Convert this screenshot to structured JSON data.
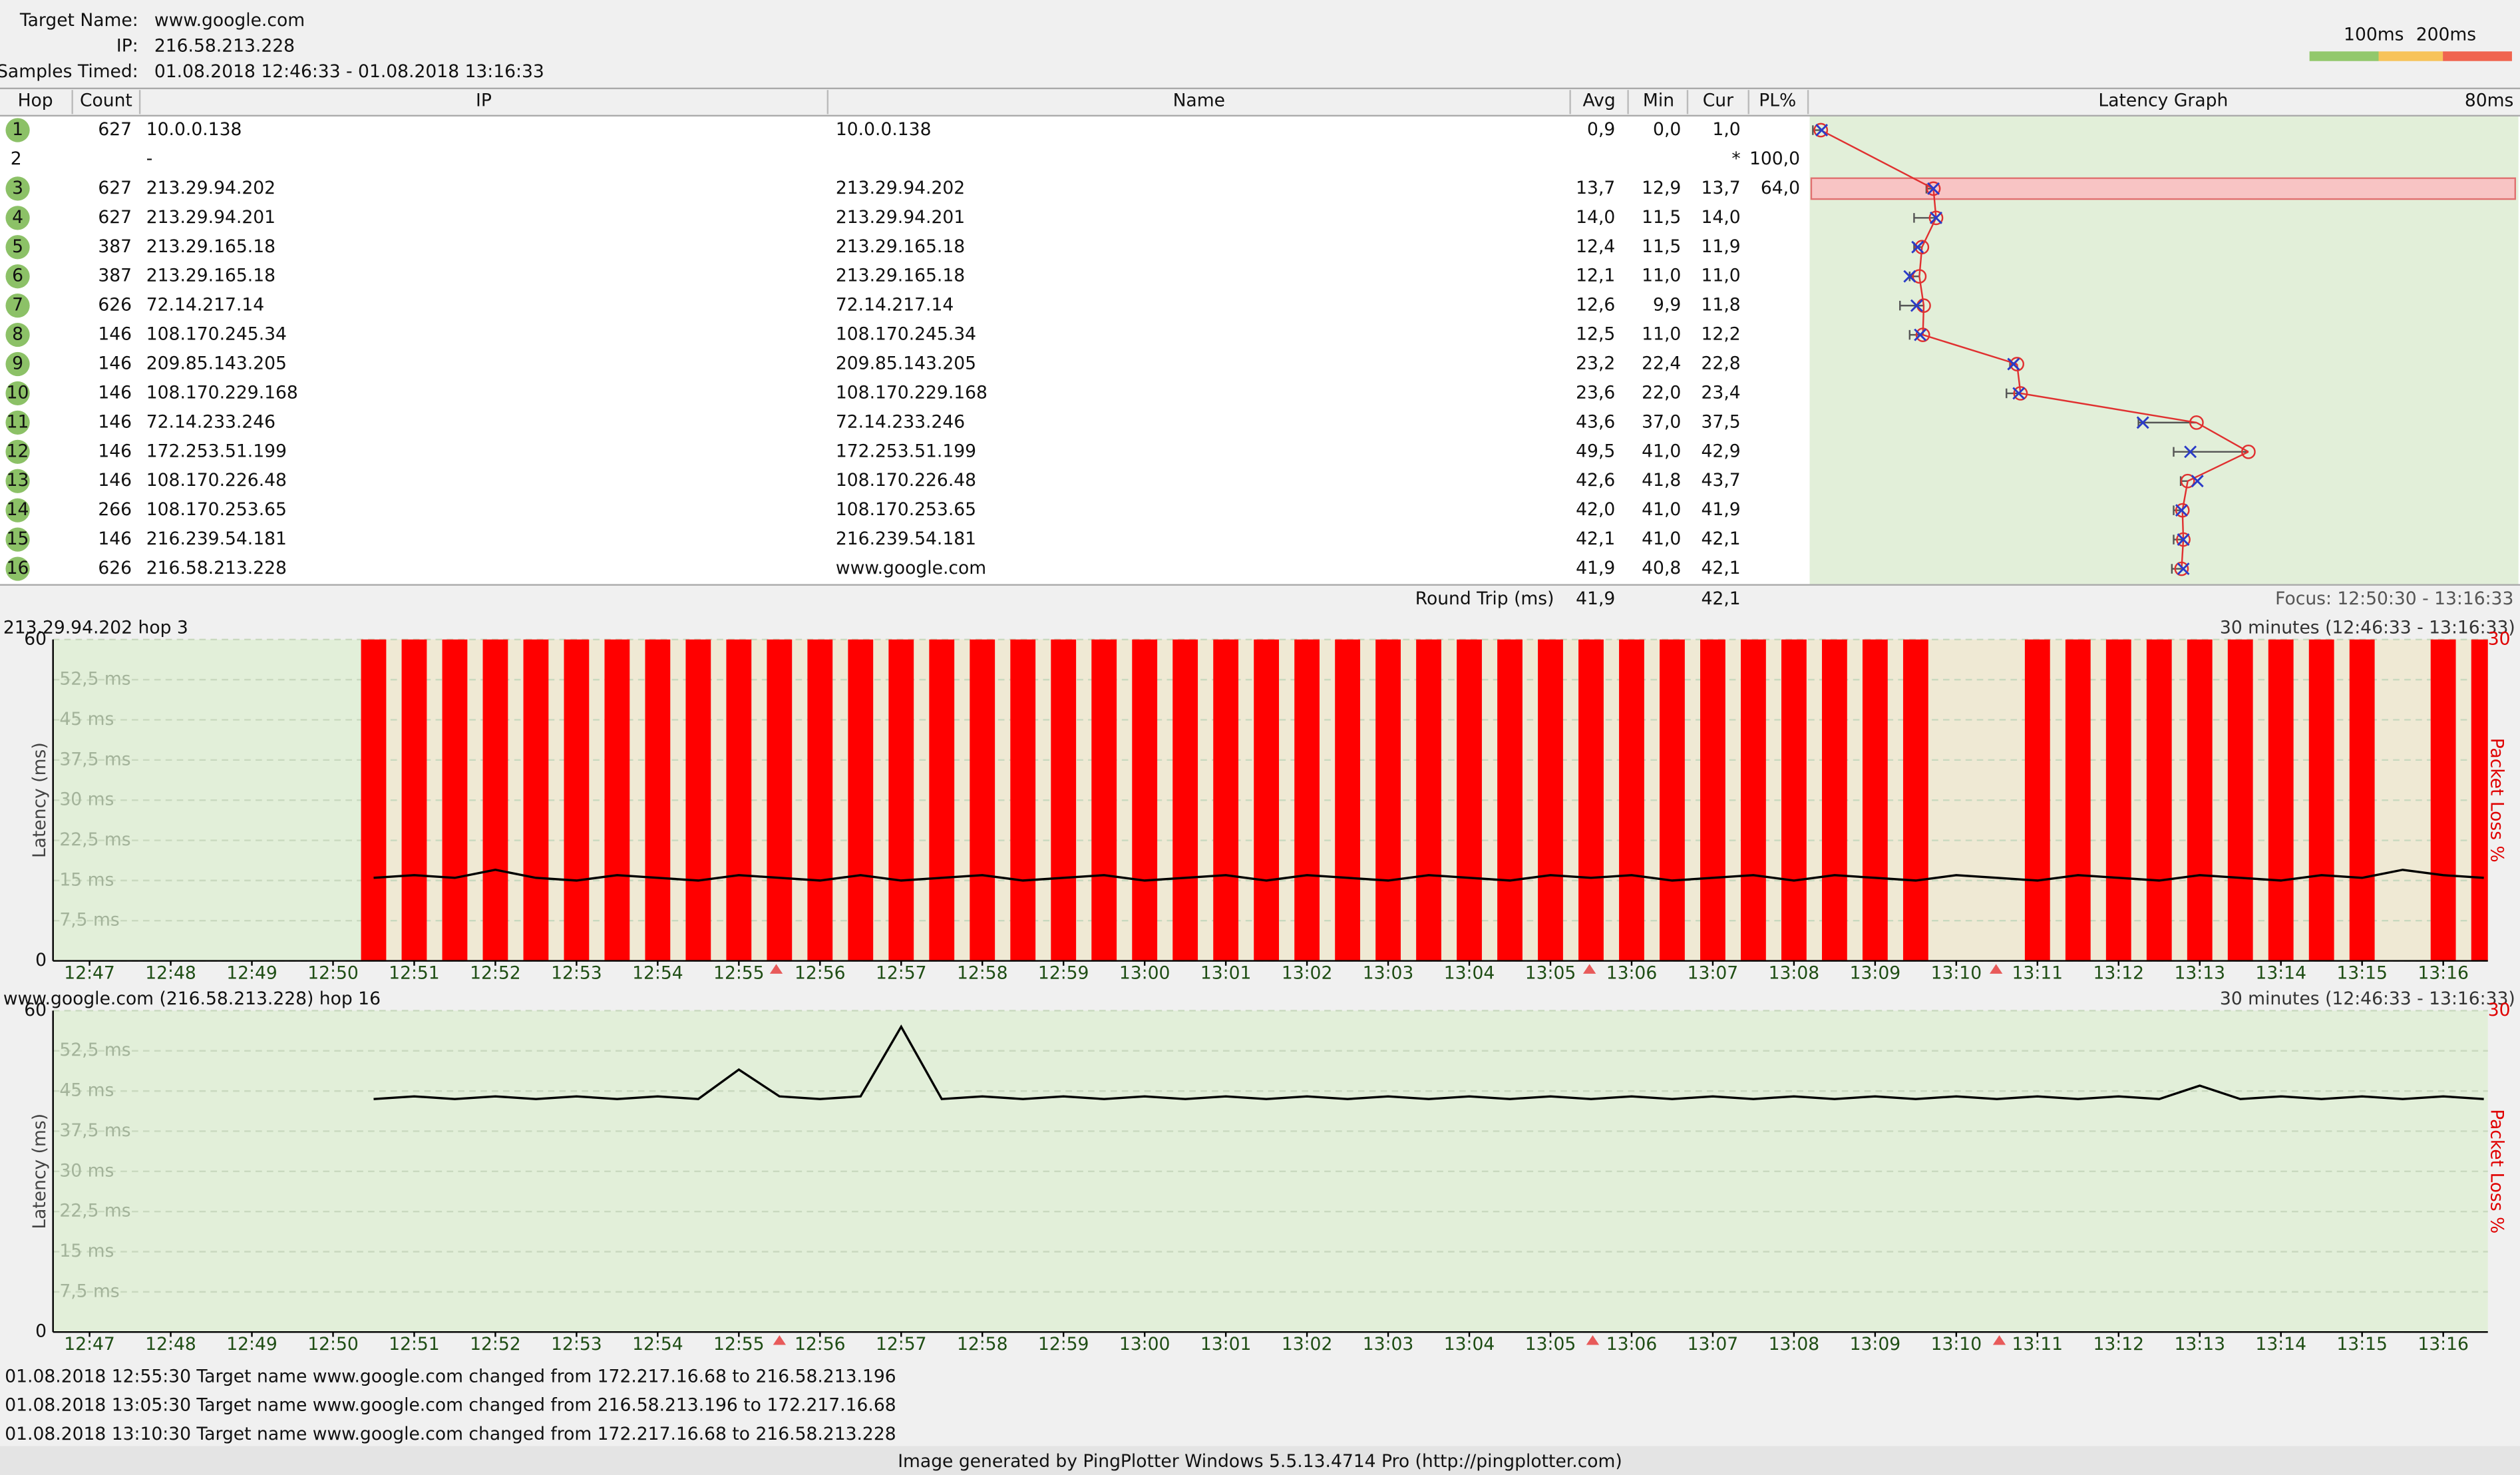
{
  "header": {
    "target_name_label": "Target Name:",
    "target_name": "www.google.com",
    "ip_label": "IP:",
    "ip": "216.58.213.228",
    "samples_label": "Samples Timed:",
    "samples": "01.08.2018 12:46:33 - 01.08.2018 13:16:33",
    "scale_labels": [
      "100ms",
      "200ms"
    ]
  },
  "table": {
    "columns": [
      "Hop",
      "Count",
      "IP",
      "Name",
      "Avg",
      "Min",
      "Cur",
      "PL%",
      "Latency Graph"
    ],
    "graph_max": "80ms",
    "rows": [
      {
        "hop": "1",
        "count": "627",
        "ip": "10.0.0.138",
        "name": "10.0.0.138",
        "avg": "0,9",
        "min": "0,0",
        "cur": "1,0"
      },
      {
        "hop": "2",
        "ip": "-",
        "cur": "*",
        "pl": "100,0"
      },
      {
        "hop": "3",
        "count": "627",
        "ip": "213.29.94.202",
        "name": "213.29.94.202",
        "avg": "13,7",
        "min": "12,9",
        "cur": "13,7",
        "pl": "64,0"
      },
      {
        "hop": "4",
        "count": "627",
        "ip": "213.29.94.201",
        "name": "213.29.94.201",
        "avg": "14,0",
        "min": "11,5",
        "cur": "14,0"
      },
      {
        "hop": "5",
        "count": "387",
        "ip": "213.29.165.18",
        "name": "213.29.165.18",
        "avg": "12,4",
        "min": "11,5",
        "cur": "11,9"
      },
      {
        "hop": "6",
        "count": "387",
        "ip": "213.29.165.18",
        "name": "213.29.165.18",
        "avg": "12,1",
        "min": "11,0",
        "cur": "11,0"
      },
      {
        "hop": "7",
        "count": "626",
        "ip": "72.14.217.14",
        "name": "72.14.217.14",
        "avg": "12,6",
        "min": "9,9",
        "cur": "11,8"
      },
      {
        "hop": "8",
        "count": "146",
        "ip": "108.170.245.34",
        "name": "108.170.245.34",
        "avg": "12,5",
        "min": "11,0",
        "cur": "12,2"
      },
      {
        "hop": "9",
        "count": "146",
        "ip": "209.85.143.205",
        "name": "209.85.143.205",
        "avg": "23,2",
        "min": "22,4",
        "cur": "22,8"
      },
      {
        "hop": "10",
        "count": "146",
        "ip": "108.170.229.168",
        "name": "108.170.229.168",
        "avg": "23,6",
        "min": "22,0",
        "cur": "23,4"
      },
      {
        "hop": "11",
        "count": "146",
        "ip": "72.14.233.246",
        "name": "72.14.233.246",
        "avg": "43,6",
        "min": "37,0",
        "cur": "37,5"
      },
      {
        "hop": "12",
        "count": "146",
        "ip": "172.253.51.199",
        "name": "172.253.51.199",
        "avg": "49,5",
        "min": "41,0",
        "cur": "42,9"
      },
      {
        "hop": "13",
        "count": "146",
        "ip": "108.170.226.48",
        "name": "108.170.226.48",
        "avg": "42,6",
        "min": "41,8",
        "cur": "43,7"
      },
      {
        "hop": "14",
        "count": "266",
        "ip": "108.170.253.65",
        "name": "108.170.253.65",
        "avg": "42,0",
        "min": "41,0",
        "cur": "41,9"
      },
      {
        "hop": "15",
        "count": "146",
        "ip": "216.239.54.181",
        "name": "216.239.54.181",
        "avg": "42,1",
        "min": "41,0",
        "cur": "42,1"
      },
      {
        "hop": "16",
        "count": "626",
        "ip": "216.58.213.228",
        "name": "www.google.com",
        "avg": "41,9",
        "min": "40,8",
        "cur": "42,1"
      }
    ],
    "summary": {
      "label": "Round Trip (ms)",
      "avg": "41,9",
      "cur": "42,1",
      "focus": "Focus: 12:50:30 - 13:16:33"
    }
  },
  "chart_data": [
    {
      "type": "line",
      "title": "213.29.94.202 hop 3",
      "subtitle": "30 minutes (12:46:33 - 13:16:33)",
      "y_label": "Latency (ms)",
      "y2_label": "Packet Loss %",
      "xlim": [
        "12:46:33",
        "13:16:33"
      ],
      "xticks": [
        "12:47",
        "12:48",
        "12:49",
        "12:50",
        "12:51",
        "12:52",
        "12:53",
        "12:54",
        "12:55",
        "12:56",
        "12:57",
        "12:58",
        "12:59",
        "13:00",
        "13:01",
        "13:02",
        "13:03",
        "13:04",
        "13:05",
        "13:06",
        "13:07",
        "13:08",
        "13:09",
        "13:10",
        "13:11",
        "13:12",
        "13:13",
        "13:14",
        "13:15",
        "13:16"
      ],
      "ylim": [
        0,
        60
      ],
      "yticks": [
        0,
        {
          "value": 7.5,
          "label": "7,5 ms"
        },
        {
          "value": 15,
          "label": "15 ms"
        },
        {
          "value": 22.5,
          "label": "22,5 ms"
        },
        {
          "value": 30,
          "label": "30 ms"
        },
        {
          "value": 37.5,
          "label": "37,5 ms"
        },
        {
          "value": 45,
          "label": "45 ms"
        },
        {
          "value": 52.5,
          "label": "52,5 ms"
        },
        60
      ],
      "y2lim": [
        0,
        30
      ],
      "y2ticks": [
        30
      ],
      "grid": true,
      "x": [
        "12:50:30",
        "12:51:00",
        "12:51:30",
        "12:52:00",
        "12:52:30",
        "12:53:00",
        "12:53:30",
        "12:54:00",
        "12:54:30",
        "12:55:00",
        "12:55:30",
        "12:56:00",
        "12:56:30",
        "12:57:00",
        "12:57:30",
        "12:58:00",
        "12:58:30",
        "12:59:00",
        "12:59:30",
        "13:00:00",
        "13:00:30",
        "13:01:00",
        "13:01:30",
        "13:02:00",
        "13:02:30",
        "13:03:00",
        "13:03:30",
        "13:04:00",
        "13:04:30",
        "13:05:00",
        "13:05:30",
        "13:06:00",
        "13:06:30",
        "13:07:00",
        "13:07:30",
        "13:08:00",
        "13:08:30",
        "13:09:00",
        "13:09:30",
        "13:10:00",
        "13:10:30",
        "13:11:00",
        "13:11:30",
        "13:12:00",
        "13:12:30",
        "13:13:00",
        "13:13:30",
        "13:14:00",
        "13:14:30",
        "13:15:00",
        "13:15:30",
        "13:16:00",
        "13:16:30"
      ],
      "series": [
        {
          "color": "#ff0000",
          "axis": "y2",
          "values": [
            100,
            100,
            100,
            100,
            100,
            100,
            100,
            100,
            100,
            100,
            100,
            100,
            100,
            100,
            100,
            100,
            100,
            100,
            100,
            100,
            100,
            100,
            100,
            100,
            100,
            100,
            100,
            100,
            100,
            100,
            100,
            100,
            100,
            100,
            100,
            100,
            100,
            100,
            100,
            0,
            0,
            100,
            100,
            100,
            100,
            100,
            100,
            100,
            100,
            100,
            0,
            100,
            100
          ]
        },
        {
          "color": "#000000",
          "values": [
            15.5,
            16,
            15.5,
            17,
            15.5,
            15,
            16,
            15.5,
            15,
            16,
            15.5,
            15,
            16,
            15,
            15.5,
            16,
            15,
            15.5,
            16,
            15,
            15.5,
            16,
            15,
            16,
            15.5,
            15,
            16,
            15.5,
            15,
            16,
            15.5,
            16,
            15,
            15.5,
            16,
            15,
            16,
            15.5,
            15,
            16,
            15.5,
            15,
            16,
            15.5,
            15,
            16,
            15.5,
            15,
            16,
            15.5,
            17,
            16,
            15.5
          ]
        }
      ]
    },
    {
      "type": "line",
      "title": "www.google.com (216.58.213.228) hop 16",
      "subtitle": "30 minutes (12:46:33 - 13:16:33)",
      "y_label": "Latency (ms)",
      "y2_label": "Packet Loss %",
      "xlim": [
        "12:46:33",
        "13:16:33"
      ],
      "xticks": [
        "12:47",
        "12:48",
        "12:49",
        "12:50",
        "12:51",
        "12:52",
        "12:53",
        "12:54",
        "12:55",
        "12:56",
        "12:57",
        "12:58",
        "12:59",
        "13:00",
        "13:01",
        "13:02",
        "13:03",
        "13:04",
        "13:05",
        "13:06",
        "13:07",
        "13:08",
        "13:09",
        "13:10",
        "13:11",
        "13:12",
        "13:13",
        "13:14",
        "13:15",
        "13:16"
      ],
      "ylim": [
        0,
        60
      ],
      "yticks": [
        0,
        {
          "value": 7.5,
          "label": "7,5 ms"
        },
        {
          "value": 15,
          "label": "15 ms"
        },
        {
          "value": 22.5,
          "label": "22,5 ms"
        },
        {
          "value": 30,
          "label": "30 ms"
        },
        {
          "value": 37.5,
          "label": "37,5 ms"
        },
        {
          "value": 45,
          "label": "45 ms"
        },
        {
          "value": 52.5,
          "label": "52,5 ms"
        },
        60
      ],
      "y2lim": [
        0,
        30
      ],
      "y2ticks": [
        30
      ],
      "grid": true,
      "x": [
        "12:50:30",
        "12:51:00",
        "12:51:30",
        "12:52:00",
        "12:52:30",
        "12:53:00",
        "12:53:30",
        "12:54:00",
        "12:54:30",
        "12:55:00",
        "12:55:30",
        "12:56:00",
        "12:56:30",
        "12:57:00",
        "12:57:30",
        "12:58:00",
        "12:58:30",
        "12:59:00",
        "12:59:30",
        "13:00:00",
        "13:00:30",
        "13:01:00",
        "13:01:30",
        "13:02:00",
        "13:02:30",
        "13:03:00",
        "13:03:30",
        "13:04:00",
        "13:04:30",
        "13:05:00",
        "13:05:30",
        "13:06:00",
        "13:06:30",
        "13:07:00",
        "13:07:30",
        "13:08:00",
        "13:08:30",
        "13:09:00",
        "13:09:30",
        "13:10:00",
        "13:10:30",
        "13:11:00",
        "13:11:30",
        "13:12:00",
        "13:12:30",
        "13:13:00",
        "13:13:30",
        "13:14:00",
        "13:14:30",
        "13:15:00",
        "13:15:30",
        "13:16:00",
        "13:16:30"
      ],
      "series": [
        {
          "color": "#000000",
          "values": [
            43.5,
            44,
            43.5,
            44,
            43.5,
            44,
            43.5,
            44,
            43.5,
            49,
            44,
            43.5,
            44,
            57,
            43.5,
            44,
            43.5,
            44,
            43.5,
            44,
            43.5,
            44,
            43.5,
            44,
            43.5,
            44,
            43.5,
            44,
            43.5,
            44,
            43.5,
            44,
            43.5,
            44,
            43.5,
            44,
            43.5,
            44,
            43.5,
            44,
            43.5,
            44,
            43.5,
            44,
            43.5,
            46,
            43.5,
            44,
            43.5,
            44,
            43.5,
            44,
            43.5
          ]
        }
      ]
    }
  ],
  "events": [
    "01.08.2018 12:55:30 Target name www.google.com changed from 172.217.16.68 to 216.58.213.196",
    "01.08.2018 13:05:30 Target name www.google.com changed from 216.58.213.196 to 172.217.16.68",
    "01.08.2018 13:10:30 Target name www.google.com changed from 172.217.16.68 to 216.58.213.228"
  ],
  "footer": "Image generated by PingPlotter Windows 5.5.13.4714 Pro (http://pingplotter.com)"
}
